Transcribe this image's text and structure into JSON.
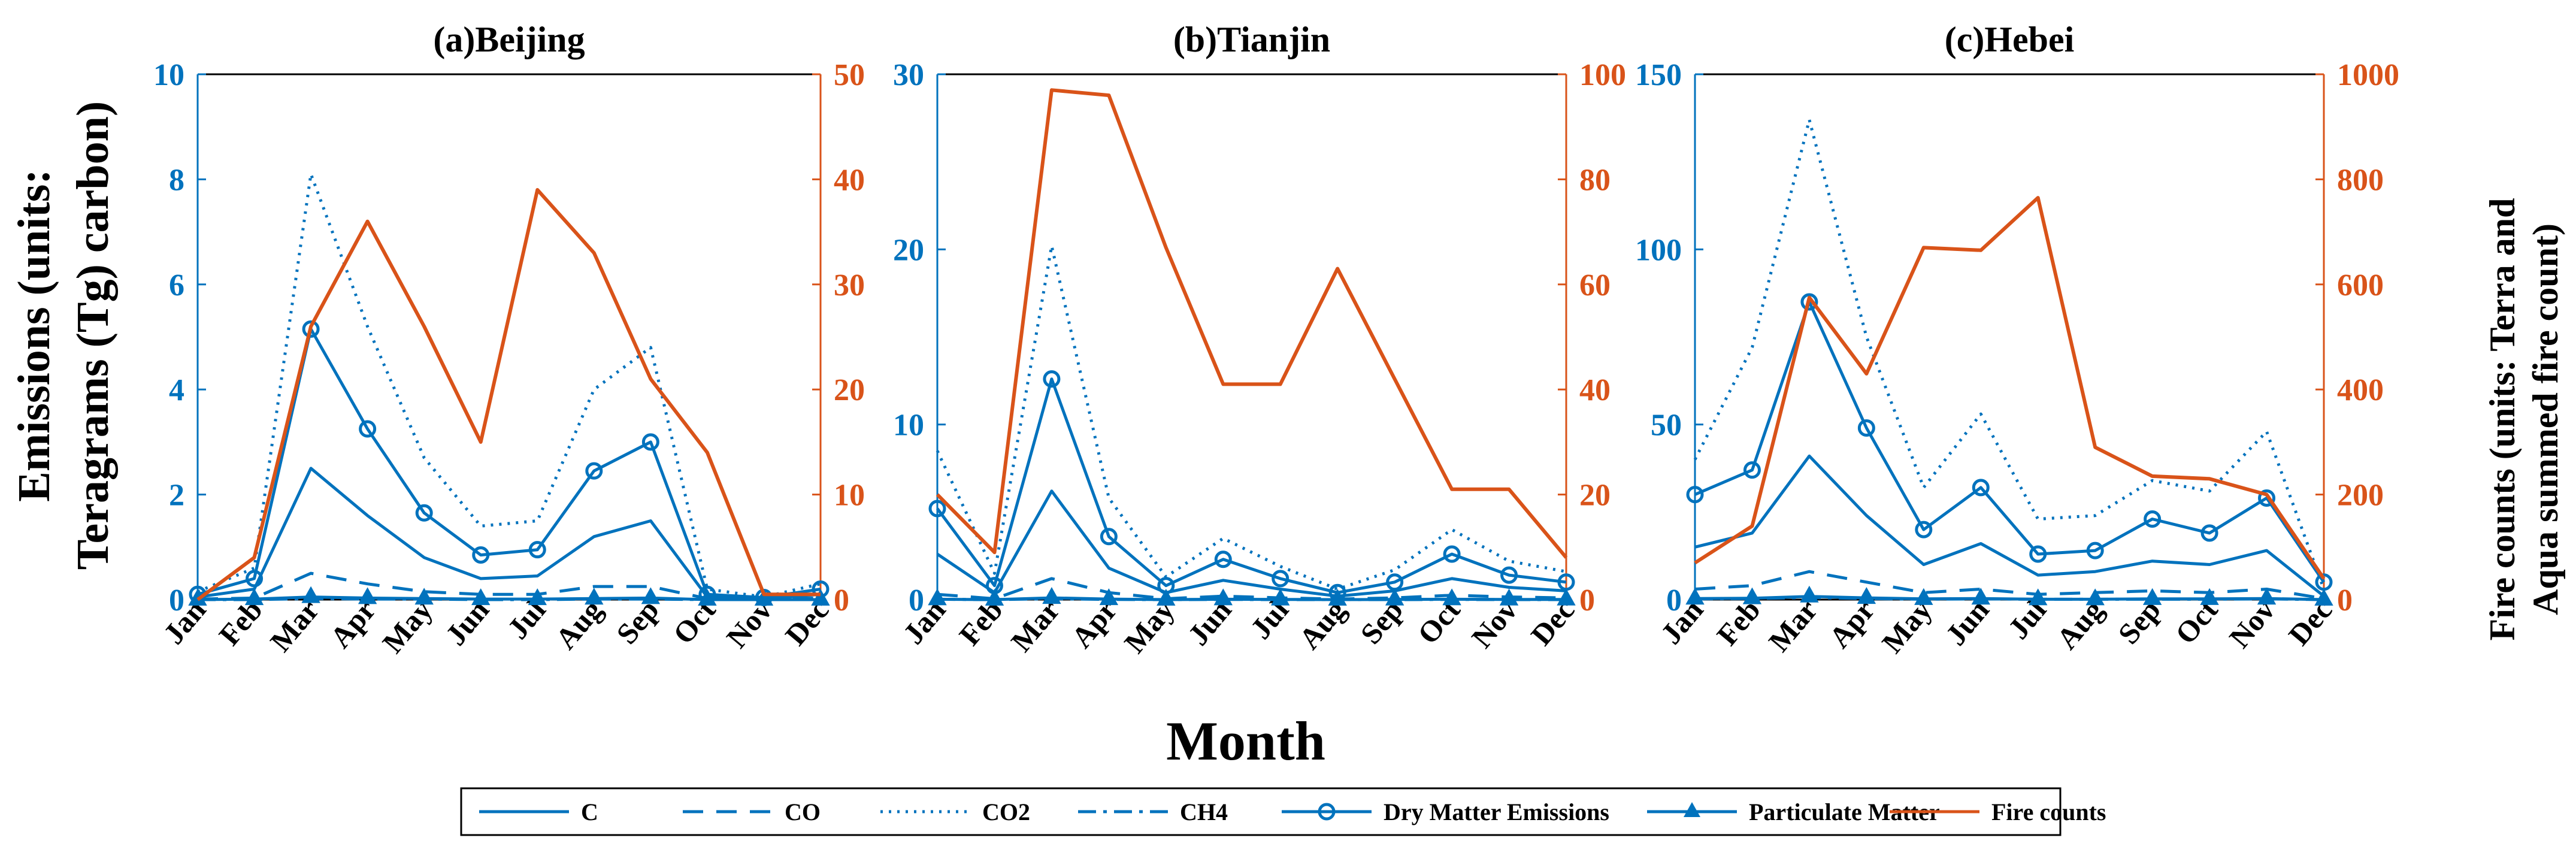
{
  "colors": {
    "emissions": "#0072BD",
    "fire": "#D95319",
    "axis": "#000000"
  },
  "xlabel": "Month",
  "ylabel_left": [
    "Emissions (units:",
    "Teragrams (Tg) carbon)"
  ],
  "ylabel_right": [
    "Fire counts (units: Terra and",
    "Aqua summed fire count)"
  ],
  "legend": {
    "entries": [
      {
        "key": "C",
        "label": "C",
        "style": "solid"
      },
      {
        "key": "CO",
        "label": "CO",
        "style": "dashed"
      },
      {
        "key": "CO2",
        "label": "CO2",
        "style": "dotted"
      },
      {
        "key": "CH4",
        "label": "CH4",
        "style": "dashdot"
      },
      {
        "key": "DM",
        "label": "Dry Matter Emissions",
        "style": "circle"
      },
      {
        "key": "PM",
        "label": "Particulate Matter",
        "style": "triangle"
      },
      {
        "key": "FC",
        "label": "Fire counts",
        "style": "fire"
      }
    ]
  },
  "chart_data": [
    {
      "type": "line",
      "title": "(a)Beijing",
      "categories": [
        "Jan",
        "Feb",
        "Mar",
        "Apr",
        "May",
        "Jun",
        "Jul",
        "Aug",
        "Sep",
        "Oct",
        "Nov",
        "Dec"
      ],
      "ylim_left": [
        0,
        10
      ],
      "yticks_left": [
        0,
        2,
        4,
        6,
        8,
        10
      ],
      "ylim_right": [
        0,
        50
      ],
      "yticks_right": [
        0,
        10,
        20,
        30,
        40,
        50
      ],
      "series": [
        {
          "key": "C",
          "name": "C",
          "axis": "left",
          "values": [
            0.05,
            0.2,
            2.5,
            1.6,
            0.8,
            0.4,
            0.45,
            1.2,
            1.5,
            0.05,
            0.02,
            0.1
          ]
        },
        {
          "key": "CO",
          "name": "CO",
          "axis": "left",
          "values": [
            0.01,
            0.03,
            0.5,
            0.3,
            0.15,
            0.1,
            0.1,
            0.25,
            0.25,
            0.02,
            0.01,
            0.03
          ]
        },
        {
          "key": "CO2",
          "name": "CO2",
          "axis": "left",
          "values": [
            0.15,
            0.6,
            8.1,
            5.2,
            2.7,
            1.4,
            1.5,
            4.0,
            4.8,
            0.2,
            0.05,
            0.3
          ]
        },
        {
          "key": "CH4",
          "name": "CH4",
          "axis": "left",
          "values": [
            0.0,
            0.0,
            0.02,
            0.01,
            0.01,
            0.0,
            0.0,
            0.01,
            0.01,
            0.0,
            0.0,
            0.0
          ]
        },
        {
          "key": "DM",
          "name": "Dry Matter Emissions",
          "axis": "left",
          "values": [
            0.1,
            0.4,
            5.15,
            3.25,
            1.65,
            0.85,
            0.95,
            2.45,
            3.0,
            0.1,
            0.04,
            0.2
          ]
        },
        {
          "key": "PM",
          "name": "Particulate Matter",
          "axis": "left",
          "values": [
            0.0,
            0.01,
            0.05,
            0.03,
            0.02,
            0.01,
            0.01,
            0.02,
            0.03,
            0.0,
            0.0,
            0.0
          ]
        },
        {
          "key": "FC",
          "name": "Fire counts",
          "axis": "right",
          "values": [
            0,
            4,
            26,
            36,
            26,
            15,
            39,
            33,
            21,
            14,
            0.5,
            0.5
          ]
        }
      ]
    },
    {
      "type": "line",
      "title": "(b)Tianjin",
      "categories": [
        "Jan",
        "Feb",
        "Mar",
        "Apr",
        "May",
        "Jun",
        "Jul",
        "Aug",
        "Sep",
        "Oct",
        "Nov",
        "Dec"
      ],
      "ylim_left": [
        0,
        30
      ],
      "yticks_left": [
        0,
        10,
        20,
        30
      ],
      "ylim_right": [
        0,
        100
      ],
      "yticks_right": [
        0,
        20,
        40,
        60,
        80,
        100
      ],
      "series": [
        {
          "key": "C",
          "name": "C",
          "axis": "left",
          "values": [
            2.6,
            0.4,
            6.2,
            1.8,
            0.4,
            1.1,
            0.6,
            0.2,
            0.5,
            1.2,
            0.7,
            0.5
          ]
        },
        {
          "key": "CO",
          "name": "CO",
          "axis": "left",
          "values": [
            0.3,
            0.05,
            1.2,
            0.4,
            0.05,
            0.2,
            0.1,
            0.03,
            0.1,
            0.25,
            0.15,
            0.1
          ]
        },
        {
          "key": "CO2",
          "name": "CO2",
          "axis": "left",
          "values": [
            8.5,
            1.5,
            20.2,
            5.8,
            1.3,
            3.5,
            1.9,
            0.6,
            1.7,
            4.0,
            2.2,
            1.6
          ]
        },
        {
          "key": "CH4",
          "name": "CH4",
          "axis": "left",
          "values": [
            0.02,
            0.0,
            0.05,
            0.01,
            0.0,
            0.01,
            0.0,
            0.0,
            0.0,
            0.01,
            0.0,
            0.0
          ]
        },
        {
          "key": "DM",
          "name": "Dry Matter Emissions",
          "axis": "left",
          "values": [
            5.2,
            0.8,
            12.6,
            3.6,
            0.8,
            2.3,
            1.2,
            0.4,
            1.0,
            2.6,
            1.4,
            1.0
          ]
        },
        {
          "key": "PM",
          "name": "Particulate Matter",
          "axis": "left",
          "values": [
            0.02,
            0.0,
            0.1,
            0.03,
            0.0,
            0.02,
            0.01,
            0.0,
            0.01,
            0.02,
            0.01,
            0.01
          ]
        },
        {
          "key": "FC",
          "name": "Fire counts",
          "axis": "right",
          "values": [
            20,
            9,
            97,
            96,
            67,
            41,
            41,
            63,
            42,
            21,
            21,
            8
          ]
        }
      ]
    },
    {
      "type": "line",
      "title": "(c)Hebei",
      "categories": [
        "Jan",
        "Feb",
        "Mar",
        "Apr",
        "May",
        "Jun",
        "Jul",
        "Aug",
        "Sep",
        "Oct",
        "Nov",
        "Dec"
      ],
      "ylim_left": [
        0,
        150
      ],
      "yticks_left": [
        0,
        50,
        100,
        150
      ],
      "ylim_right": [
        0,
        1000
      ],
      "yticks_right": [
        0,
        200,
        400,
        600,
        800,
        1000
      ],
      "series": [
        {
          "key": "C",
          "name": "C",
          "axis": "left",
          "values": [
            15,
            19,
            41,
            24,
            10,
            16,
            7,
            8,
            11,
            10,
            14,
            1
          ]
        },
        {
          "key": "CO",
          "name": "CO",
          "axis": "left",
          "values": [
            3,
            4,
            8,
            5,
            2,
            3,
            1.5,
            2,
            2.5,
            2,
            3,
            0.3
          ]
        },
        {
          "key": "CO2",
          "name": "CO2",
          "axis": "left",
          "values": [
            40,
            72,
            137,
            75,
            32,
            53,
            23,
            24,
            34,
            31,
            48,
            3
          ]
        },
        {
          "key": "CH4",
          "name": "CH4",
          "axis": "left",
          "values": [
            0.2,
            0.3,
            0.6,
            0.3,
            0.1,
            0.2,
            0.1,
            0.1,
            0.1,
            0.1,
            0.2,
            0.0
          ]
        },
        {
          "key": "DM",
          "name": "Dry Matter Emissions",
          "axis": "left",
          "values": [
            30,
            37,
            85,
            49,
            20,
            32,
            13,
            14,
            23,
            19,
            29,
            5
          ]
        },
        {
          "key": "PM",
          "name": "Particulate Matter",
          "axis": "left",
          "values": [
            0.3,
            0.4,
            0.9,
            0.5,
            0.2,
            0.3,
            0.1,
            0.1,
            0.2,
            0.2,
            0.3,
            0.0
          ]
        },
        {
          "key": "FC",
          "name": "Fire counts",
          "axis": "right",
          "values": [
            70,
            140,
            575,
            430,
            670,
            665,
            765,
            290,
            235,
            230,
            200,
            40
          ]
        }
      ]
    }
  ]
}
